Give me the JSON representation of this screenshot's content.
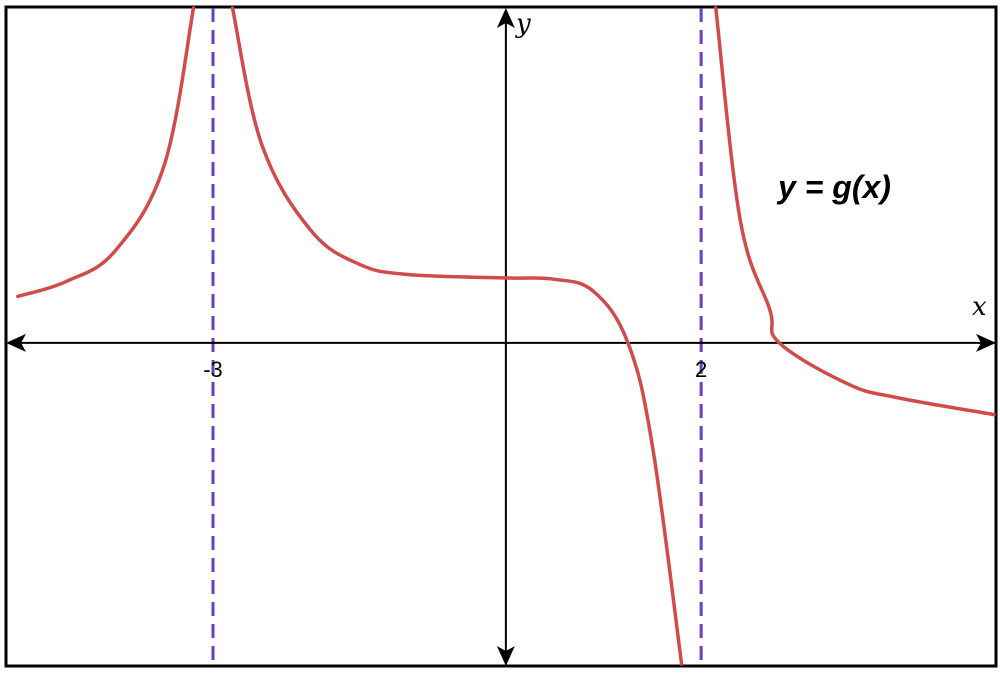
{
  "chart_data": {
    "type": "line",
    "title": "",
    "function_label": "y = g(x)",
    "xlabel": "x",
    "ylabel": "y",
    "xlim": [
      -5.1,
      5.0
    ],
    "ylim": [
      -4.7,
      4.9
    ],
    "grid": false,
    "vertical_asymptotes": [
      {
        "x": -3,
        "label": "-3"
      },
      {
        "x": 2,
        "label": "2"
      }
    ],
    "series": [
      {
        "color": "#d24b4b",
        "points": [
          {
            "x": -5.0,
            "y": 0.68
          },
          {
            "x": -4.5,
            "y": 0.9
          },
          {
            "x": -4.0,
            "y": 1.35
          },
          {
            "x": -3.5,
            "y": 2.6
          },
          {
            "x": -3.2,
            "y": 4.9
          },
          {
            "x": -2.8,
            "y": 4.9
          },
          {
            "x": -2.5,
            "y": 2.9
          },
          {
            "x": -2.0,
            "y": 1.65
          },
          {
            "x": -1.5,
            "y": 1.15
          },
          {
            "x": -1.0,
            "y": 1.0
          },
          {
            "x": 0.0,
            "y": 0.95
          },
          {
            "x": 0.5,
            "y": 0.93
          },
          {
            "x": 0.9,
            "y": 0.75
          },
          {
            "x": 1.25,
            "y": 0.0
          },
          {
            "x": 1.5,
            "y": -1.5
          },
          {
            "x": 1.8,
            "y": -4.7
          },
          {
            "x": 2.15,
            "y": 4.9
          },
          {
            "x": 2.4,
            "y": 1.8
          },
          {
            "x": 2.7,
            "y": 0.5
          },
          {
            "x": 2.8,
            "y": 0.0
          },
          {
            "x": 3.5,
            "y": -0.6
          },
          {
            "x": 4.0,
            "y": -0.8
          },
          {
            "x": 5.0,
            "y": -1.05
          }
        ]
      }
    ]
  }
}
